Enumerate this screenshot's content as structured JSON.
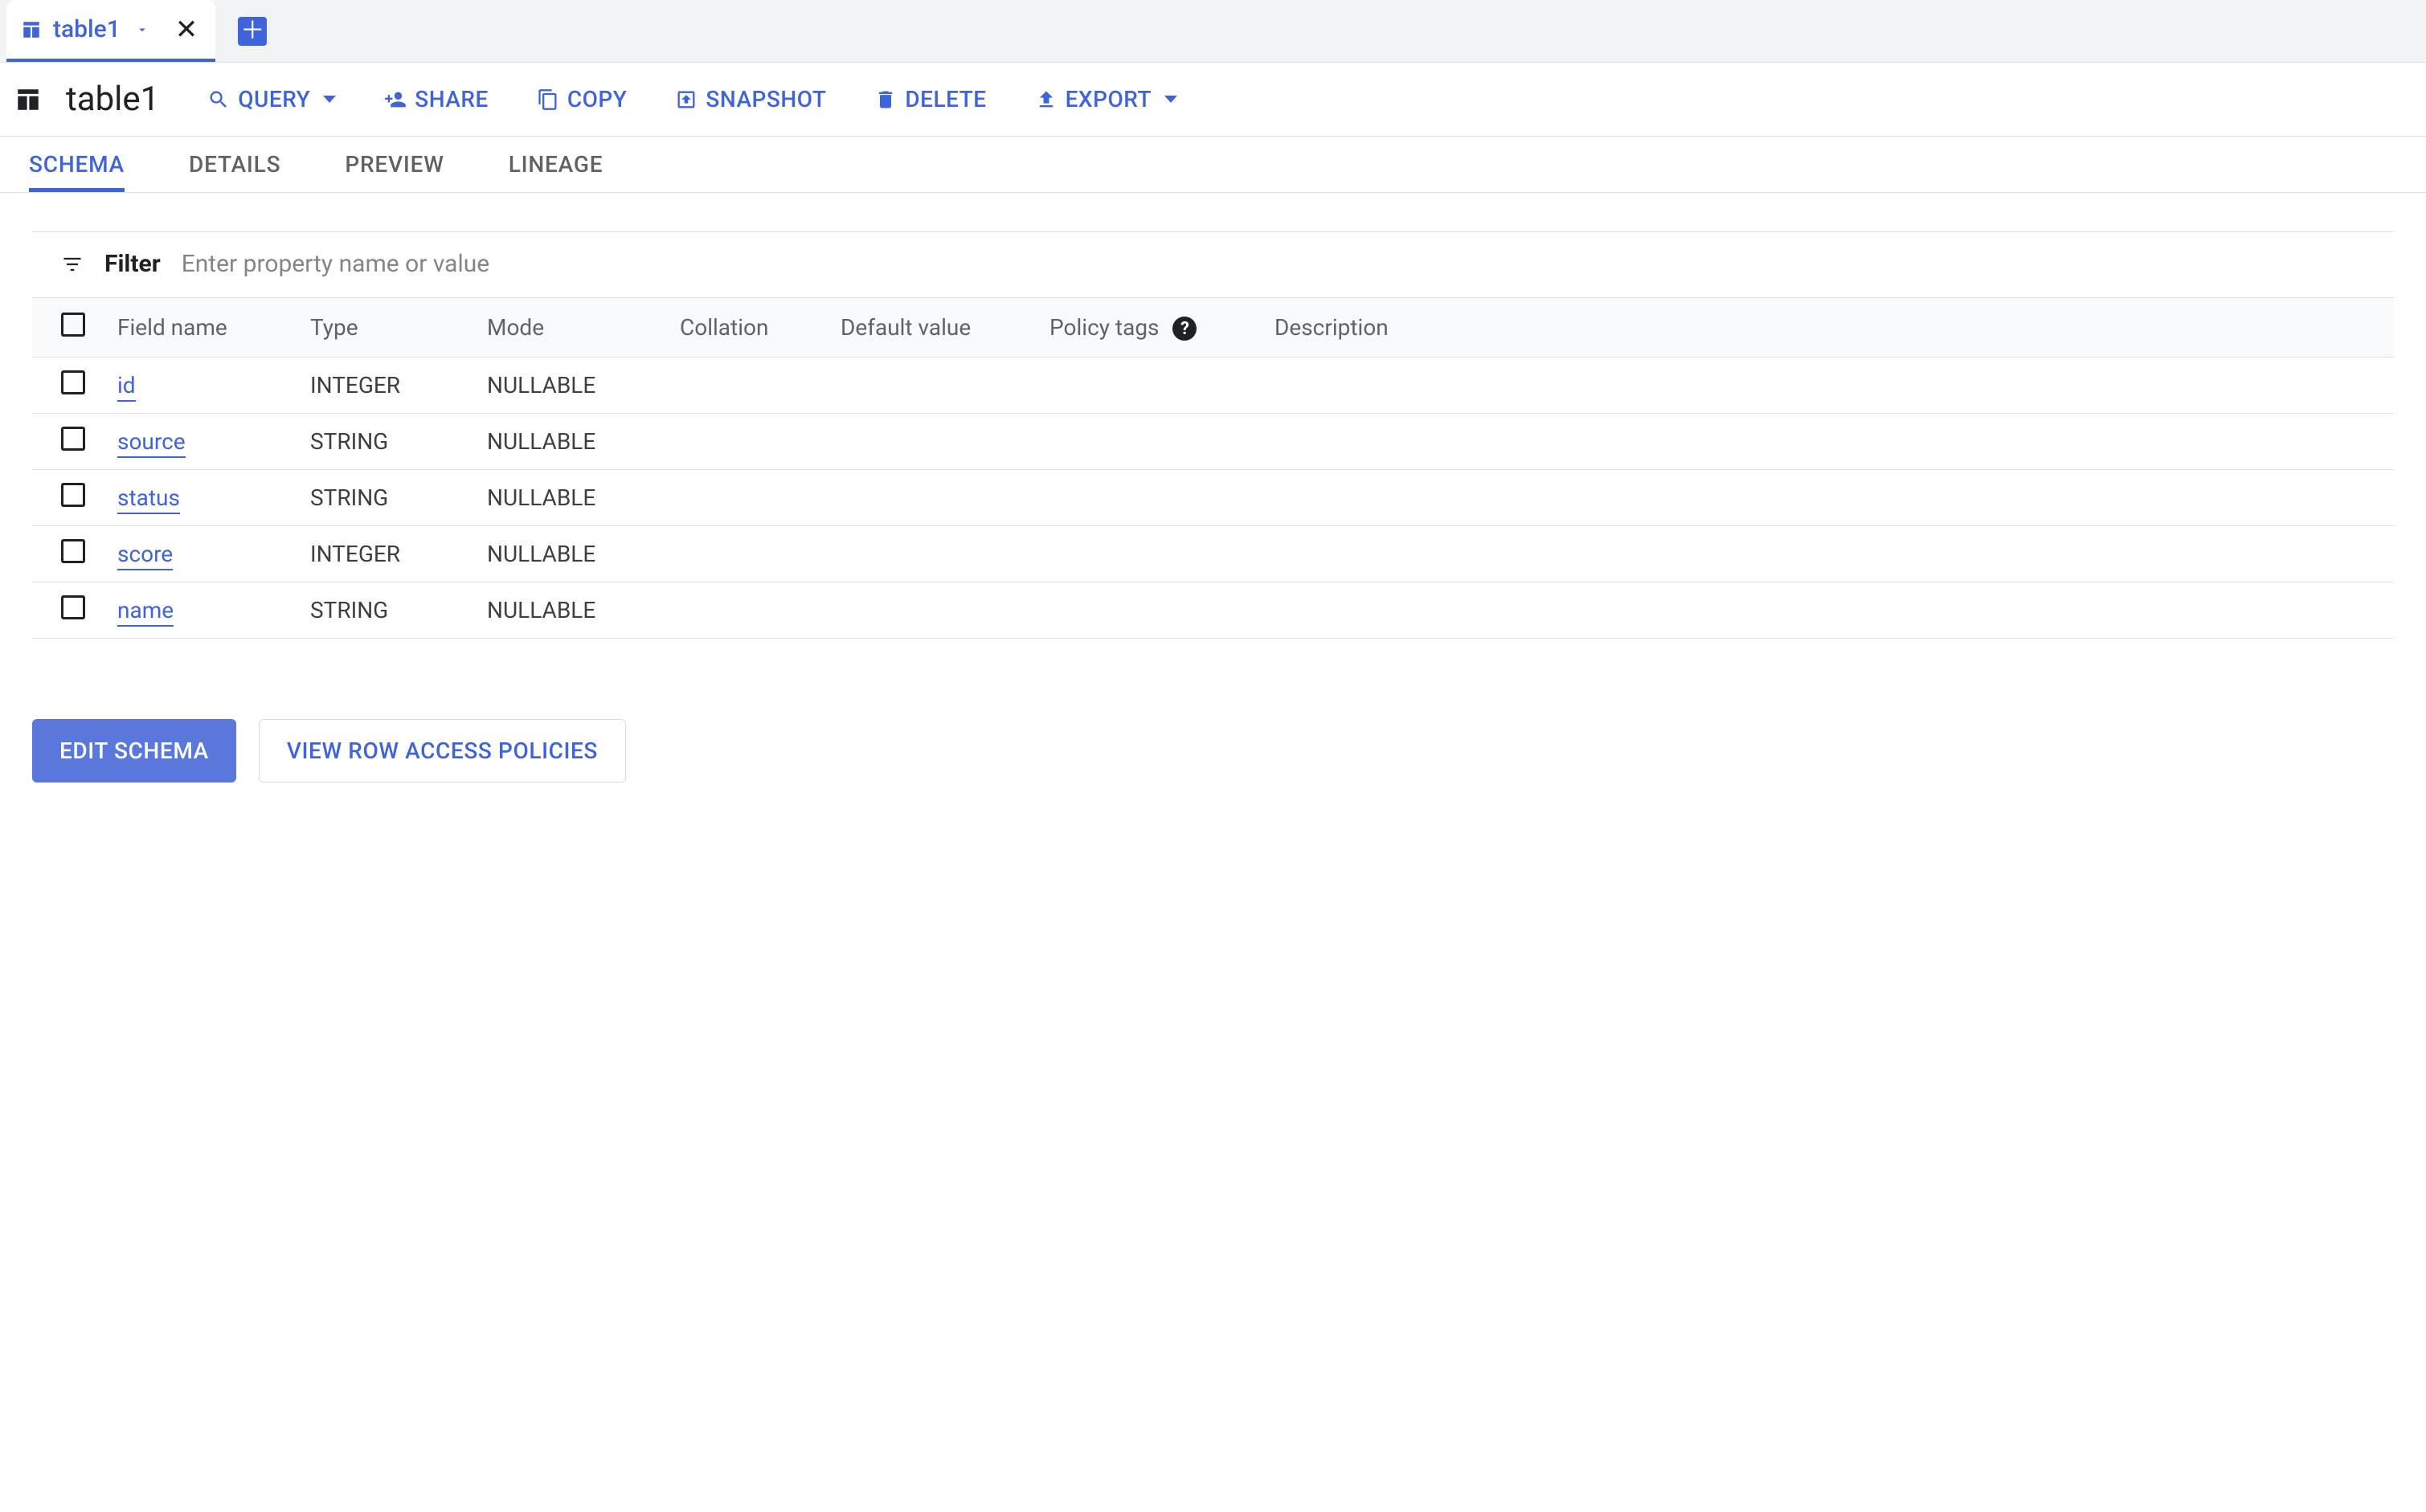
{
  "colors": {
    "accent": "#3f64d9",
    "text": "#202124",
    "muted": "#5f6368",
    "border": "#e0e0e0",
    "tab_strip_bg": "#f1f3f4",
    "header_row_bg": "#f8f9fa",
    "primary_btn_bg": "#5a78db",
    "outline_btn_border": "#dadce0"
  },
  "tab_strip": {
    "tabs": [
      {
        "label": "table1",
        "active": true
      }
    ]
  },
  "header": {
    "title": "table1",
    "actions": [
      {
        "key": "query",
        "label": "QUERY",
        "has_caret": true
      },
      {
        "key": "share",
        "label": "SHARE",
        "has_caret": false
      },
      {
        "key": "copy",
        "label": "COPY",
        "has_caret": false
      },
      {
        "key": "snapshot",
        "label": "SNAPSHOT",
        "has_caret": false
      },
      {
        "key": "delete",
        "label": "DELETE",
        "has_caret": false
      },
      {
        "key": "export",
        "label": "EXPORT",
        "has_caret": true
      }
    ]
  },
  "sub_tabs": {
    "items": [
      {
        "label": "SCHEMA",
        "active": true
      },
      {
        "label": "DETAILS",
        "active": false
      },
      {
        "label": "PREVIEW",
        "active": false
      },
      {
        "label": "LINEAGE",
        "active": false
      }
    ]
  },
  "filter": {
    "label": "Filter",
    "placeholder": "Enter property name or value"
  },
  "schema_table": {
    "columns": [
      {
        "key": "checkbox",
        "label": ""
      },
      {
        "key": "field_name",
        "label": "Field name"
      },
      {
        "key": "type",
        "label": "Type"
      },
      {
        "key": "mode",
        "label": "Mode"
      },
      {
        "key": "collation",
        "label": "Collation"
      },
      {
        "key": "default",
        "label": "Default value"
      },
      {
        "key": "policy_tags",
        "label": "Policy tags",
        "help": true
      },
      {
        "key": "description",
        "label": "Description"
      }
    ],
    "rows": [
      {
        "field_name": "id",
        "type": "INTEGER",
        "mode": "NULLABLE",
        "collation": "",
        "default": "",
        "policy_tags": "",
        "description": ""
      },
      {
        "field_name": "source",
        "type": "STRING",
        "mode": "NULLABLE",
        "collation": "",
        "default": "",
        "policy_tags": "",
        "description": ""
      },
      {
        "field_name": "status",
        "type": "STRING",
        "mode": "NULLABLE",
        "collation": "",
        "default": "",
        "policy_tags": "",
        "description": ""
      },
      {
        "field_name": "score",
        "type": "INTEGER",
        "mode": "NULLABLE",
        "collation": "",
        "default": "",
        "policy_tags": "",
        "description": ""
      },
      {
        "field_name": "name",
        "type": "STRING",
        "mode": "NULLABLE",
        "collation": "",
        "default": "",
        "policy_tags": "",
        "description": ""
      }
    ]
  },
  "footer": {
    "edit_schema": "EDIT SCHEMA",
    "view_row_access": "VIEW ROW ACCESS POLICIES"
  }
}
